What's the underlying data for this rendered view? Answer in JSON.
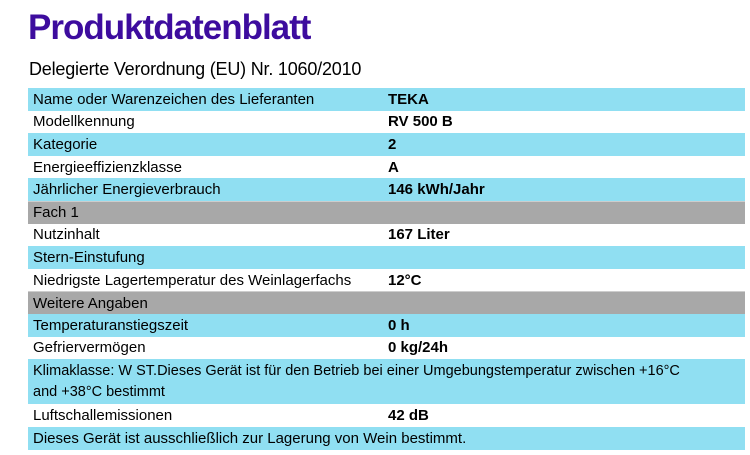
{
  "header": {
    "title": "Produktdatenblatt",
    "subtitle": "Delegierte Verordnung (EU) Nr. 1060/2010"
  },
  "colors": {
    "title_purple": "#3D0C9E",
    "row_blue": "#90DFF2",
    "section_gray": "#A8A8A8",
    "text": "#000000"
  },
  "table": {
    "rows": [
      {
        "type": "data",
        "shade": "blue",
        "label": "Name oder Warenzeichen des Lieferanten",
        "value": "TEKA"
      },
      {
        "type": "data",
        "shade": "white",
        "label": "Modellkennung",
        "value": "RV 500 B"
      },
      {
        "type": "data",
        "shade": "blue",
        "label": "Kategorie",
        "value": "2"
      },
      {
        "type": "data",
        "shade": "white",
        "label": "Energieeffizienzklasse",
        "value": "A"
      },
      {
        "type": "data",
        "shade": "blue",
        "label": "Jährlicher Energieverbrauch",
        "value": "146 kWh/Jahr"
      },
      {
        "type": "section",
        "shade": "gray",
        "label": "Fach 1",
        "value": ""
      },
      {
        "type": "data",
        "shade": "white",
        "label": "Nutzinhalt",
        "value": "167 Liter"
      },
      {
        "type": "data",
        "shade": "blue",
        "label": "Stern-Einstufung",
        "value": ""
      },
      {
        "type": "data",
        "shade": "white",
        "label": "Niedrigste Lagertemperatur des Weinlagerfachs",
        "value": "12°C"
      },
      {
        "type": "section",
        "shade": "gray",
        "label": "Weitere Angaben",
        "value": ""
      },
      {
        "type": "data",
        "shade": "blue",
        "label": "Temperaturanstiegszeit",
        "value": "0 h"
      },
      {
        "type": "data",
        "shade": "white",
        "label": "Gefriervermögen",
        "value": "0 kg/24h"
      },
      {
        "type": "note",
        "shade": "blue",
        "line1": "Klimaklasse: W ST.Dieses Gerät ist für den Betrieb bei einer Umgebungstemperatur zwischen +16°C",
        "line2": "and +38°C bestimmt"
      },
      {
        "type": "data",
        "shade": "white",
        "label": "Luftschallemissionen",
        "value": "42 dB"
      },
      {
        "type": "note-single",
        "shade": "blue",
        "label": "Dieses Gerät ist ausschließlich zur Lagerung von Wein bestimmt."
      }
    ]
  }
}
